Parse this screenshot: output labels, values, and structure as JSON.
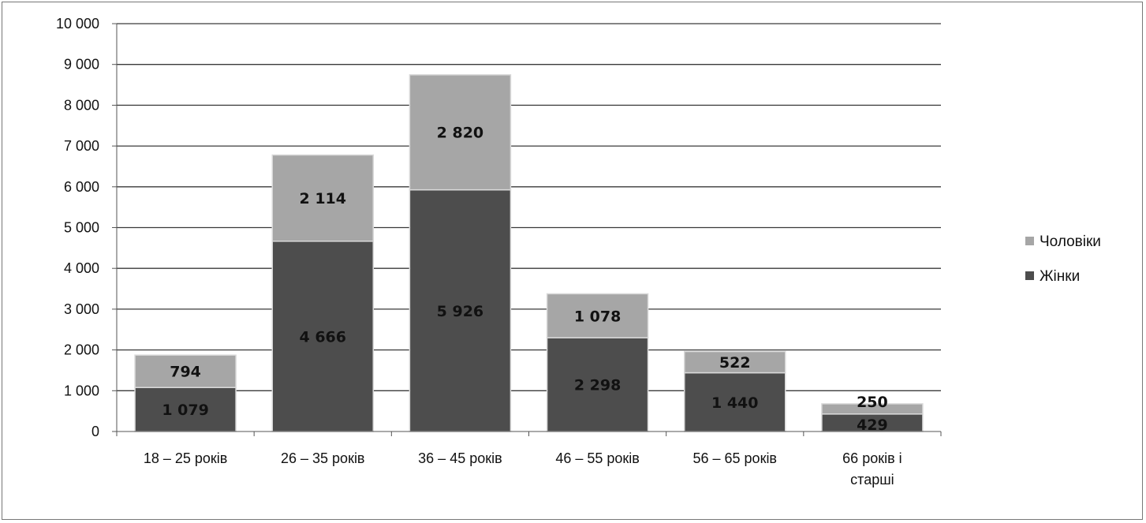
{
  "chart_data": {
    "type": "bar",
    "stacked": true,
    "title": "",
    "xlabel": "",
    "ylabel": "",
    "categories": [
      [
        "18 – 25 років"
      ],
      [
        "26 – 35 років"
      ],
      [
        "36 – 45 років"
      ],
      [
        "46 – 55 років"
      ],
      [
        "56 – 65 років"
      ],
      [
        "66 років і",
        "старші"
      ]
    ],
    "series": [
      {
        "name": "Жінки",
        "values": [
          1079,
          4666,
          5926,
          2298,
          1440,
          429
        ],
        "labels": [
          "1 079",
          "4 666",
          "5 926",
          "2 298",
          "1 440",
          "429"
        ],
        "color": "#4d4d4d"
      },
      {
        "name": "Чоловіки",
        "values": [
          794,
          2114,
          2820,
          1078,
          522,
          250
        ],
        "labels": [
          "794",
          "2 114",
          "2 820",
          "1 078",
          "522",
          "250"
        ],
        "color": "#a6a6a6"
      }
    ],
    "ylim": [
      0,
      10000
    ],
    "yticks": [
      0,
      1000,
      2000,
      3000,
      4000,
      5000,
      6000,
      7000,
      8000,
      9000,
      10000
    ],
    "ytick_labels": [
      "0",
      "1 000",
      "2 000",
      "3 000",
      "4 000",
      "5 000",
      "6 000",
      "7 000",
      "8 000",
      "9 000",
      "10 000"
    ],
    "grid": true,
    "legend_position": "right",
    "legend_order": [
      "Чоловіки",
      "Жінки"
    ]
  }
}
